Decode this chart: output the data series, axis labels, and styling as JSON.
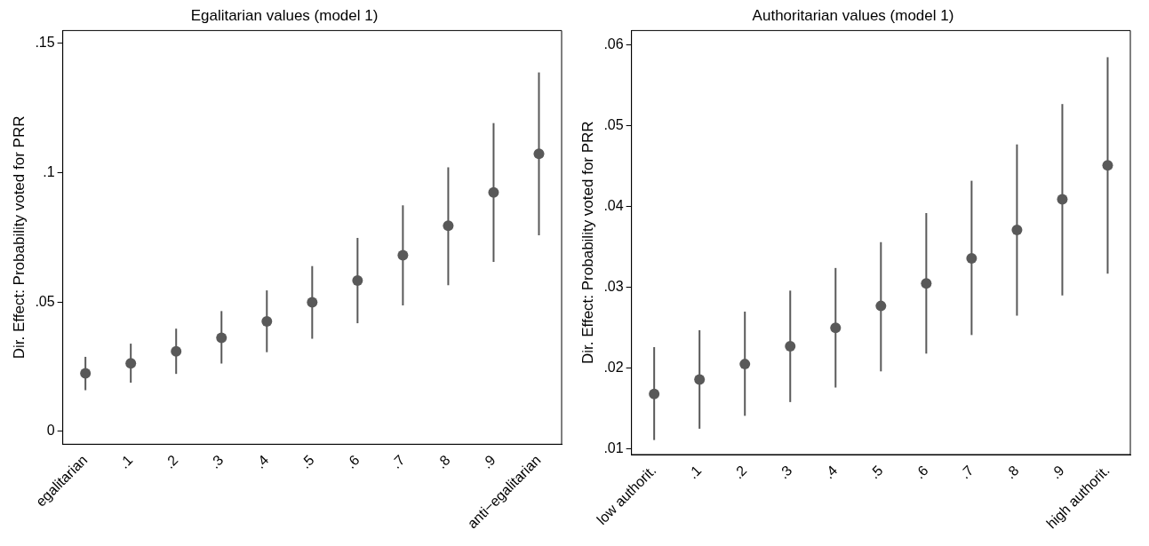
{
  "chart_data": [
    {
      "type": "scatter",
      "title": "Egalitarian values (model 1)",
      "ylabel": "Dir. Effect: Probability voted for PRR",
      "categories": [
        "egalitarian",
        ".1",
        ".2",
        ".3",
        ".4",
        ".5",
        ".6",
        ".7",
        ".8",
        ".9",
        "anti−egalitarian"
      ],
      "series": [
        {
          "color": "#595959",
          "values": [
            0.0224,
            0.0263,
            0.0309,
            0.0362,
            0.0425,
            0.0499,
            0.0583,
            0.0681,
            0.0795,
            0.0924,
            0.1073
          ],
          "errors": [
            [
              0.0159,
              0.0288
            ],
            [
              0.0188,
              0.0339
            ],
            [
              0.0222,
              0.0397
            ],
            [
              0.0262,
              0.0465
            ],
            [
              0.0306,
              0.0545
            ],
            [
              0.0358,
              0.0639
            ],
            [
              0.0418,
              0.0748
            ],
            [
              0.0487,
              0.0874
            ],
            [
              0.0565,
              0.1021
            ],
            [
              0.0655,
              0.1192
            ],
            [
              0.0758,
              0.1388
            ]
          ]
        }
      ],
      "ylim": [
        -0.005,
        0.155
      ],
      "yticks": [
        {
          "value": 0,
          "label": "0"
        },
        {
          "value": 0.05,
          "label": ".05"
        },
        {
          "value": 0.1,
          "label": ".1"
        },
        {
          "value": 0.15,
          "label": ".15"
        }
      ],
      "marker": "circle",
      "grid": false,
      "legend": false
    },
    {
      "type": "scatter",
      "title": "Authoritarian values (model 1)",
      "ylabel": "Dir. Effect: Probability voted for PRR",
      "categories": [
        "low authorit.",
        ".1",
        ".2",
        ".3",
        ".4",
        ".5",
        ".6",
        ".7",
        ".8",
        ".9",
        "high authorit."
      ],
      "series": [
        {
          "color": "#595959",
          "values": [
            0.0168,
            0.0186,
            0.0205,
            0.0227,
            0.025,
            0.0277,
            0.0305,
            0.0336,
            0.0371,
            0.0409,
            0.0451
          ],
          "errors": [
            [
              0.0111,
              0.0226
            ],
            [
              0.0125,
              0.0247
            ],
            [
              0.0141,
              0.027
            ],
            [
              0.0158,
              0.0296
            ],
            [
              0.0176,
              0.0324
            ],
            [
              0.0196,
              0.0356
            ],
            [
              0.0218,
              0.0392
            ],
            [
              0.0241,
              0.0432
            ],
            [
              0.0265,
              0.0477
            ],
            [
              0.029,
              0.0527
            ],
            [
              0.0317,
              0.0585
            ]
          ]
        }
      ],
      "ylim": [
        0.0093,
        0.0618
      ],
      "yticks": [
        {
          "value": 0.01,
          "label": ".01"
        },
        {
          "value": 0.02,
          "label": ".02"
        },
        {
          "value": 0.03,
          "label": ".03"
        },
        {
          "value": 0.04,
          "label": ".04"
        },
        {
          "value": 0.05,
          "label": ".05"
        },
        {
          "value": 0.06,
          "label": ".06"
        }
      ],
      "marker": "circle",
      "grid": false,
      "legend": false
    }
  ]
}
